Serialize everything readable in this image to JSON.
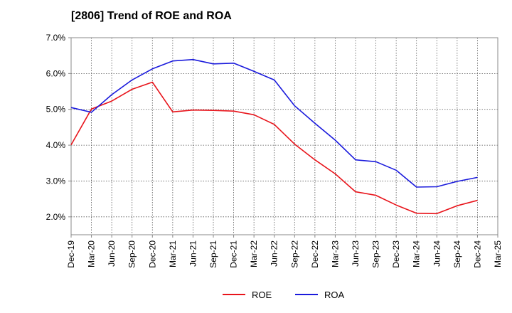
{
  "chart_data": {
    "type": "line",
    "title": "[2806]  Trend of ROE and ROA",
    "xlabel": "",
    "ylabel": "",
    "y_unit": "%",
    "ylim": [
      1.5,
      7.0
    ],
    "yticks": [
      "2.0%",
      "3.0%",
      "4.0%",
      "5.0%",
      "6.0%",
      "7.0%"
    ],
    "ytick_values": [
      2.0,
      3.0,
      4.0,
      5.0,
      6.0,
      7.0
    ],
    "grid": true,
    "legend_position": "bottom-center",
    "categories": [
      "Dec-19",
      "Mar-20",
      "Jun-20",
      "Sep-20",
      "Dec-20",
      "Mar-21",
      "Jun-21",
      "Sep-21",
      "Dec-21",
      "Mar-22",
      "Jun-22",
      "Sep-22",
      "Dec-22",
      "Mar-23",
      "Jun-23",
      "Sep-23",
      "Dec-23",
      "Mar-24",
      "Jun-24",
      "Sep-24",
      "Dec-24",
      "Mar-25"
    ],
    "series": [
      {
        "name": "ROE",
        "color": "#e8141b",
        "values": [
          4.01,
          5.01,
          5.23,
          5.56,
          5.76,
          4.93,
          4.98,
          4.97,
          4.95,
          4.85,
          4.58,
          4.03,
          3.59,
          3.2,
          2.7,
          2.6,
          2.33,
          2.1,
          2.09,
          2.31,
          2.46,
          null
        ]
      },
      {
        "name": "ROA",
        "color": "#1a1adc",
        "values": [
          5.05,
          4.92,
          5.41,
          5.82,
          6.13,
          6.35,
          6.39,
          6.27,
          6.29,
          6.06,
          5.82,
          5.1,
          4.61,
          4.14,
          3.59,
          3.54,
          3.3,
          2.83,
          2.84,
          2.99,
          3.1,
          null
        ]
      }
    ]
  }
}
